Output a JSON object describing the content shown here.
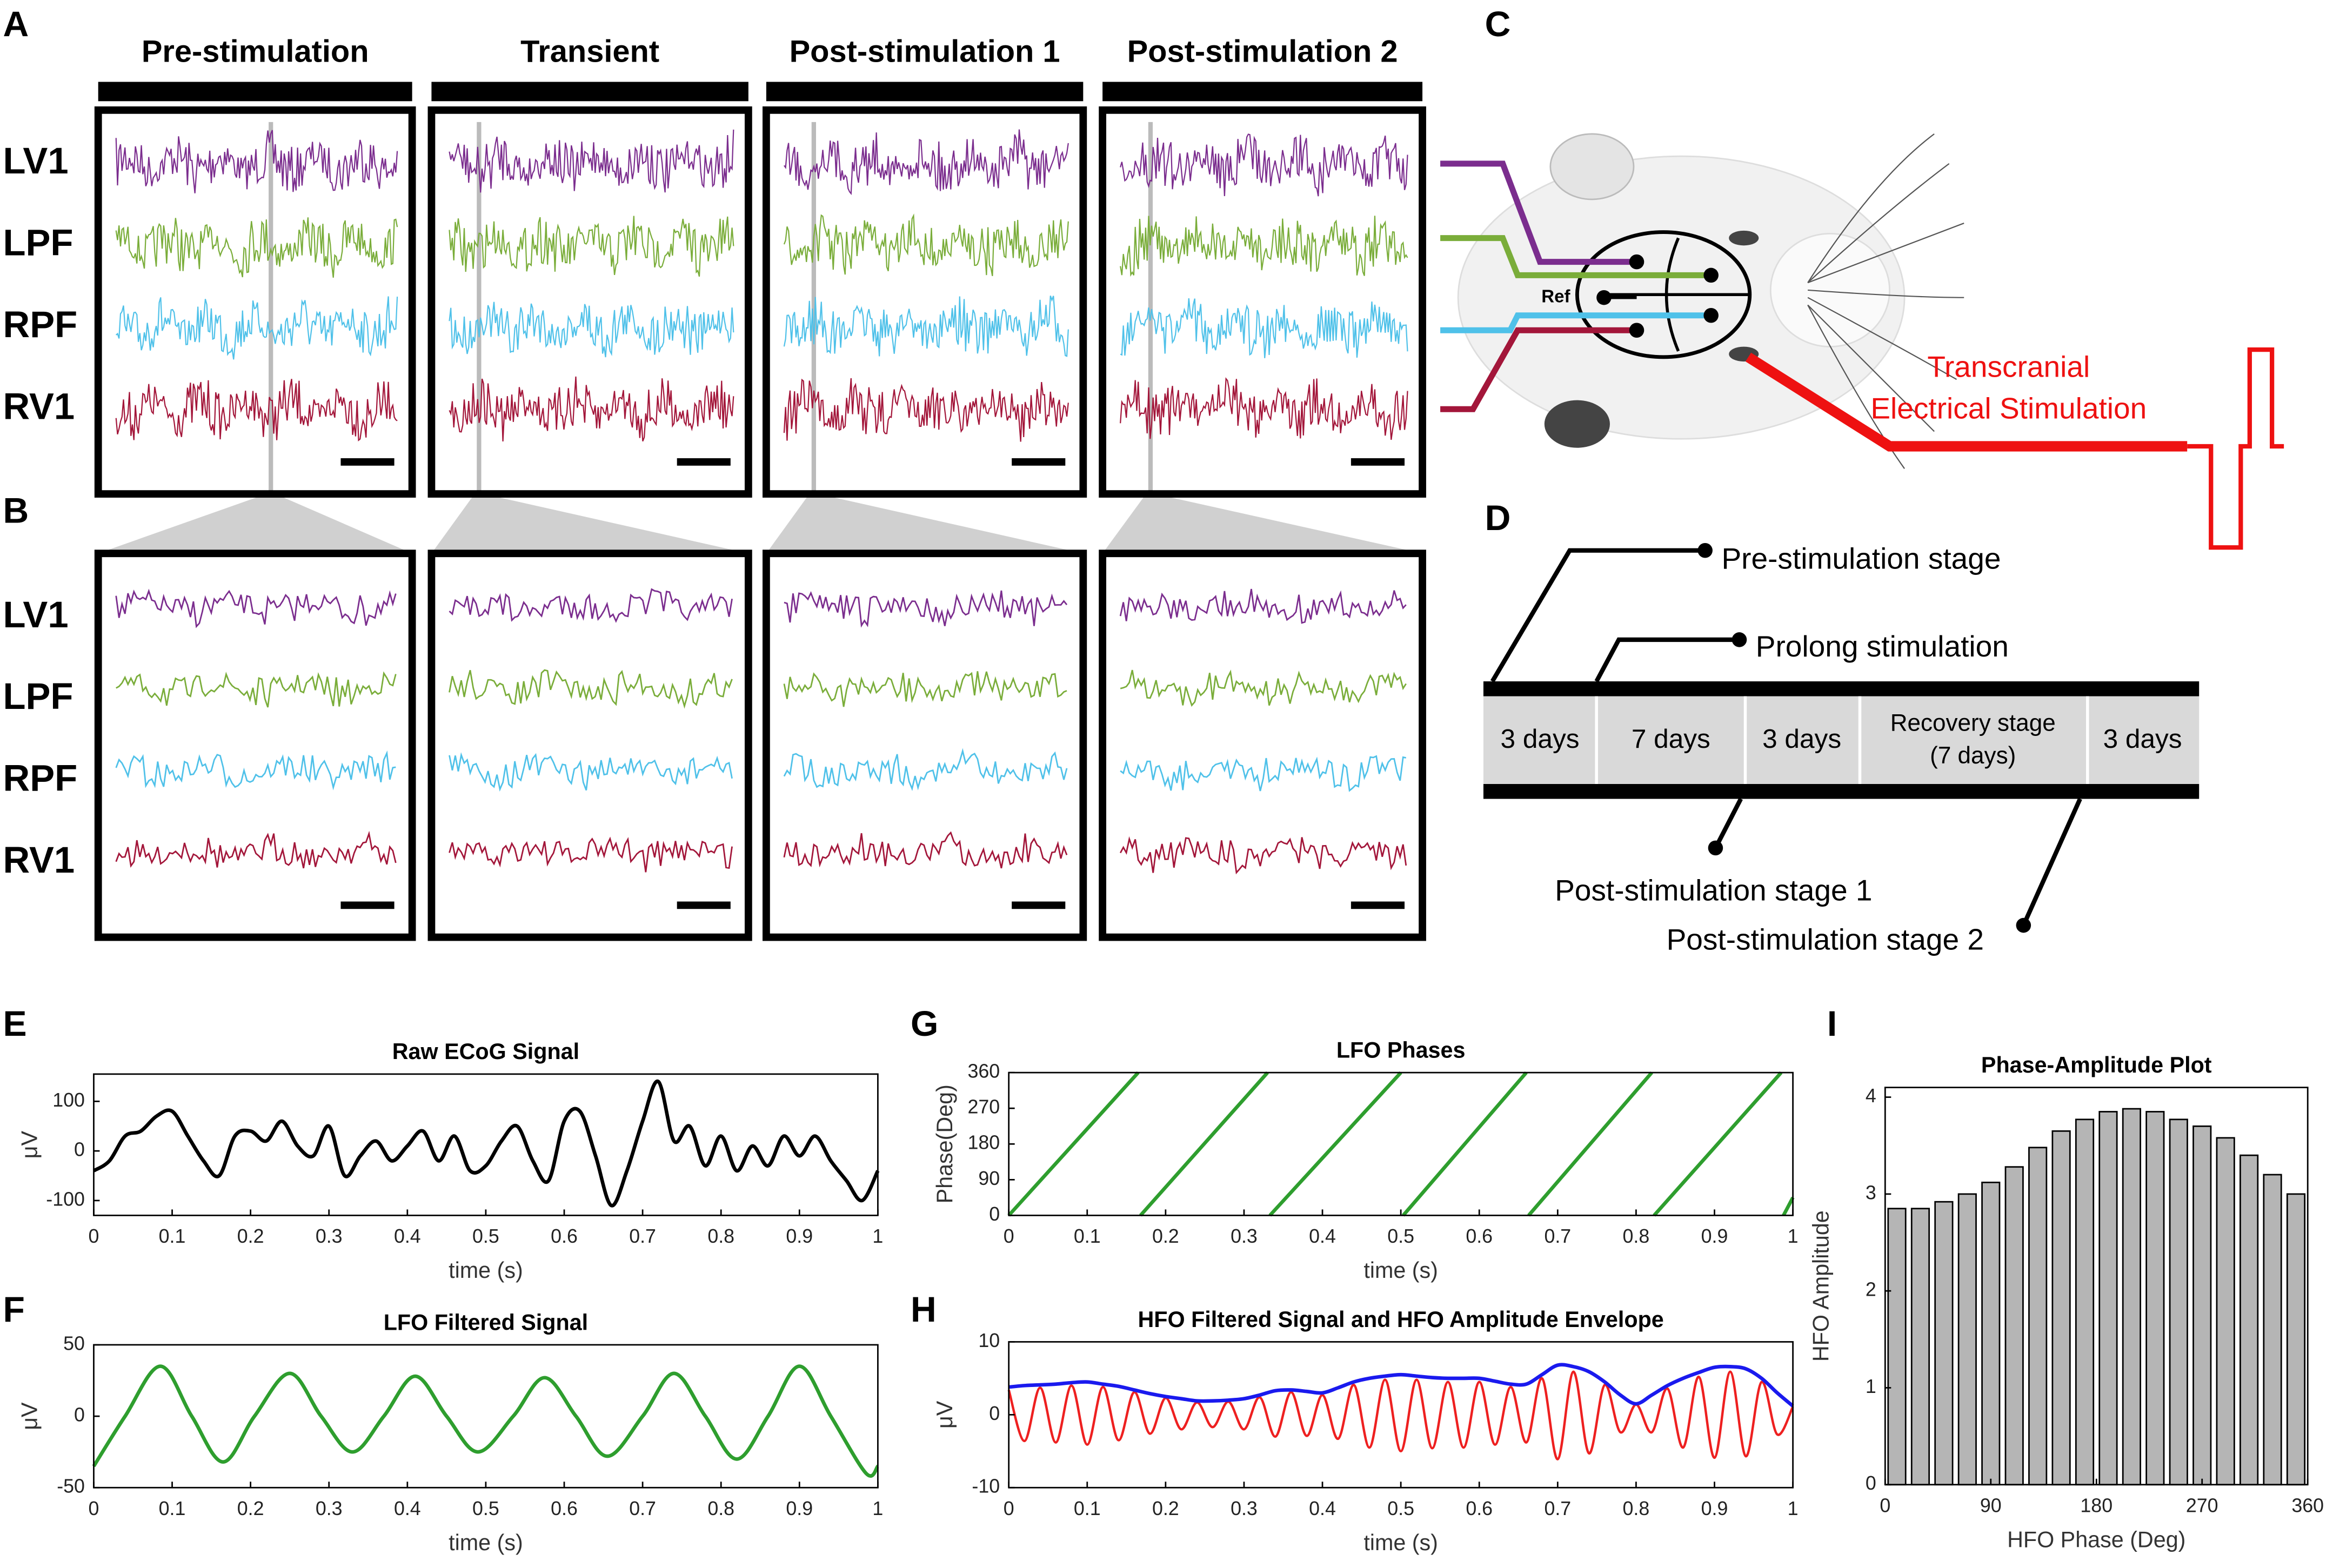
{
  "figure": {
    "panels": {
      "A": "A",
      "B": "B",
      "C": "C",
      "D": "D"
    },
    "stages": [
      "Pre-stimulation",
      "Transient",
      "Post-stimulation 1",
      "Post-stimulation 2"
    ],
    "channels": [
      "LV1",
      "LPF",
      "RPF",
      "RV1"
    ],
    "diagram": {
      "ref": "Ref",
      "stim_line1": "Transcranial",
      "stim_line2": "Electrical Stimulation"
    },
    "timeline": {
      "cells": [
        "3 days",
        "7 days",
        "3 days",
        "Recovery stage",
        "(7 days)",
        "3 days"
      ],
      "callouts": [
        "Pre-stimulation stage",
        "Prolong stimulation",
        "Post-stimulation stage 1",
        "Post-stimulation stage 2"
      ]
    }
  },
  "chart_data": [
    {
      "type": "line",
      "label": "E",
      "title": "Raw ECoG Signal",
      "xlabel": "time (s)",
      "ylabel": "μV",
      "x": [
        0,
        0.02,
        0.04,
        0.06,
        0.08,
        0.1,
        0.12,
        0.14,
        0.16,
        0.18,
        0.2,
        0.22,
        0.24,
        0.26,
        0.28,
        0.3,
        0.32,
        0.34,
        0.36,
        0.38,
        0.4,
        0.42,
        0.44,
        0.46,
        0.48,
        0.5,
        0.52,
        0.54,
        0.56,
        0.58,
        0.6,
        0.62,
        0.64,
        0.66,
        0.68,
        0.7,
        0.72,
        0.74,
        0.76,
        0.78,
        0.8,
        0.82,
        0.84,
        0.86,
        0.88,
        0.9,
        0.92,
        0.94,
        0.96,
        0.98,
        1
      ],
      "series": [
        {
          "color": "#000000",
          "values": [
            -40,
            -20,
            30,
            40,
            70,
            80,
            30,
            -20,
            -50,
            30,
            40,
            20,
            60,
            10,
            -10,
            50,
            -50,
            -10,
            20,
            -20,
            10,
            40,
            -20,
            30,
            -40,
            -30,
            20,
            50,
            -20,
            -60,
            60,
            80,
            -10,
            -110,
            -40,
            60,
            140,
            20,
            50,
            -30,
            30,
            -40,
            10,
            -30,
            30,
            -10,
            30,
            -20,
            -60,
            -100,
            -40
          ]
        }
      ],
      "xlim": [
        0,
        1
      ],
      "ylim": [
        -130,
        155
      ],
      "xticks": [
        0,
        0.1,
        0.2,
        0.3,
        0.4,
        0.5,
        0.6,
        0.7,
        0.8,
        0.9,
        1
      ],
      "yticks": [
        -100,
        0,
        100
      ]
    },
    {
      "type": "line",
      "label": "F",
      "title": "LFO Filtered Signal",
      "xlabel": "time (s)",
      "ylabel": "μV",
      "x": [
        0,
        0.04,
        0.085,
        0.125,
        0.165,
        0.205,
        0.25,
        0.29,
        0.33,
        0.37,
        0.41,
        0.45,
        0.49,
        0.535,
        0.575,
        0.615,
        0.655,
        0.7,
        0.74,
        0.78,
        0.82,
        0.86,
        0.9,
        0.94,
        0.985,
        1
      ],
      "series": [
        {
          "color": "#2e9e2e",
          "values": [
            -35,
            0,
            35,
            0,
            -32,
            0,
            30,
            0,
            -25,
            0,
            28,
            0,
            -25,
            0,
            27,
            0,
            -28,
            0,
            30,
            0,
            -30,
            0,
            35,
            0,
            -40,
            -35
          ]
        }
      ],
      "xlim": [
        0,
        1
      ],
      "ylim": [
        -50,
        50
      ],
      "xticks": [
        0,
        0.1,
        0.2,
        0.3,
        0.4,
        0.5,
        0.6,
        0.7,
        0.8,
        0.9,
        1
      ],
      "yticks": [
        -50,
        0,
        50
      ]
    },
    {
      "type": "line",
      "label": "G",
      "title": "LFO Phases",
      "xlabel": "time (s)",
      "ylabel": "Phase(Deg)",
      "x": [
        0,
        0.165,
        0.165,
        0.168,
        0.33,
        0.33,
        0.333,
        0.5,
        0.5,
        0.503,
        0.66,
        0.66,
        0.663,
        0.82,
        0.82,
        0.823,
        0.985,
        0.985,
        0.988,
        1
      ],
      "series": [
        {
          "color": "#2e9e2e",
          "values": [
            0,
            360,
            null,
            0,
            360,
            null,
            0,
            360,
            null,
            0,
            360,
            null,
            0,
            360,
            null,
            0,
            360,
            null,
            0,
            45
          ]
        }
      ],
      "xlim": [
        0,
        1
      ],
      "ylim": [
        0,
        360
      ],
      "xticks": [
        0,
        0.1,
        0.2,
        0.3,
        0.4,
        0.5,
        0.6,
        0.7,
        0.8,
        0.9,
        1
      ],
      "yticks": [
        0,
        90,
        180,
        270,
        360
      ]
    },
    {
      "type": "line",
      "label": "H",
      "title": "HFO Filtered Signal and HFO Amplitude Envelope",
      "xlabel": "time (s)",
      "ylabel": "μV",
      "x": [
        0,
        0.02,
        0.04,
        0.06,
        0.08,
        0.1,
        0.12,
        0.14,
        0.16,
        0.18,
        0.2,
        0.22,
        0.24,
        0.26,
        0.28,
        0.3,
        0.32,
        0.34,
        0.36,
        0.38,
        0.4,
        0.42,
        0.44,
        0.46,
        0.48,
        0.5,
        0.52,
        0.54,
        0.56,
        0.58,
        0.6,
        0.62,
        0.64,
        0.66,
        0.68,
        0.7,
        0.72,
        0.74,
        0.76,
        0.78,
        0.8,
        0.82,
        0.84,
        0.86,
        0.88,
        0.9,
        0.92,
        0.94,
        0.96,
        0.98,
        1
      ],
      "series": [
        {
          "color": "#ee2020",
          "values": [
            3.4,
            -3.6,
            3.7,
            -3.8,
            4.0,
            -4.1,
            3.8,
            -3.5,
            3.1,
            -2.6,
            2.3,
            -2.0,
            1.7,
            -1.7,
            1.8,
            -2.0,
            2.4,
            -3.0,
            3.1,
            -2.9,
            2.7,
            -3.3,
            4.1,
            -4.5,
            4.8,
            -5.0,
            4.8,
            -4.6,
            4.5,
            -4.5,
            4.5,
            -4.1,
            3.8,
            -3.8,
            5.0,
            -6.1,
            5.9,
            -5.3,
            4.1,
            -2.4,
            1.4,
            -2.4,
            3.6,
            -4.5,
            5.2,
            -5.9,
            5.9,
            -5.7,
            4.5,
            -2.7,
            1.1
          ]
        },
        {
          "color": "#1a1aee",
          "values": [
            3.8,
            4.0,
            4.1,
            4.2,
            4.4,
            4.5,
            4.2,
            3.9,
            3.4,
            2.9,
            2.5,
            2.2,
            1.9,
            1.9,
            2.0,
            2.2,
            2.7,
            3.3,
            3.4,
            3.2,
            3.0,
            3.7,
            4.5,
            5.0,
            5.3,
            5.5,
            5.3,
            5.1,
            5.0,
            5.0,
            5.0,
            4.6,
            4.2,
            4.2,
            5.5,
            6.8,
            6.6,
            5.9,
            4.5,
            2.7,
            1.5,
            2.7,
            4.0,
            5.0,
            5.8,
            6.5,
            6.6,
            6.3,
            5.0,
            3.0,
            1.2
          ]
        }
      ],
      "xlim": [
        0,
        1
      ],
      "ylim": [
        -10,
        10
      ],
      "xticks": [
        0,
        0.1,
        0.2,
        0.3,
        0.4,
        0.5,
        0.6,
        0.7,
        0.8,
        0.9,
        1
      ],
      "yticks": [
        -10,
        0,
        10
      ]
    },
    {
      "type": "histogram",
      "label": "I",
      "title": "Phase-Amplitude Plot",
      "xlabel": "HFO Phase (Deg)",
      "ylabel": "HFO Amplitude",
      "bins": [
        0,
        20,
        40,
        60,
        80,
        100,
        120,
        140,
        160,
        180,
        200,
        220,
        240,
        260,
        280,
        300,
        320,
        340,
        360
      ],
      "values": [
        2.85,
        2.85,
        2.92,
        3.0,
        3.12,
        3.28,
        3.48,
        3.65,
        3.77,
        3.85,
        3.88,
        3.85,
        3.77,
        3.7,
        3.58,
        3.4,
        3.2,
        3.0
      ],
      "color": "#b5b5b5",
      "xlim": [
        0,
        360
      ],
      "ylim": [
        0,
        4.1
      ],
      "xticks": [
        0,
        90,
        180,
        270,
        360
      ],
      "yticks": [
        0,
        1,
        2,
        3,
        4
      ]
    }
  ]
}
